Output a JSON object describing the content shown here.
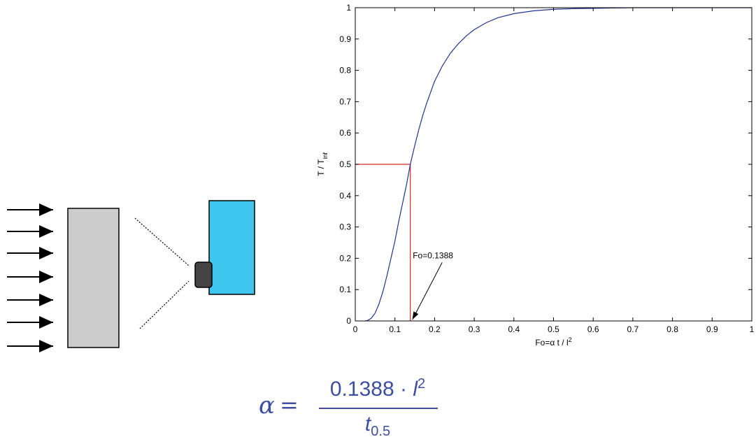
{
  "diagram": {
    "arrow_count": 7,
    "plate_color": "#cccccc",
    "sensor_color": "#3fc6ec",
    "detector_color": "#444444"
  },
  "chart_data": {
    "type": "line",
    "title": "",
    "xlabel": "Fo=α t / l",
    "xlabel_sup": "2",
    "ylabel": "T / T",
    "ylabel_sub": "inf",
    "xlim": [
      0,
      1
    ],
    "ylim": [
      0,
      1
    ],
    "xticks": [
      0,
      0.1,
      0.2,
      0.3,
      0.4,
      0.5,
      0.6,
      0.7,
      0.8,
      0.9,
      1
    ],
    "xtick_labels": [
      "0",
      "0.1",
      "0.2",
      "0.3",
      "0.4",
      "0.5",
      "0.6",
      "0.7",
      "0.8",
      "0.9",
      "1"
    ],
    "yticks": [
      0,
      0.1,
      0.2,
      0.3,
      0.4,
      0.5,
      0.6,
      0.7,
      0.8,
      0.9,
      1
    ],
    "ytick_labels": [
      "0",
      "0.1",
      "0.2",
      "0.3",
      "0.4",
      "0.5",
      "0.6",
      "0.7",
      "0.8",
      "0.9",
      "1"
    ],
    "grid": false,
    "series": [
      {
        "color": "#1f3590",
        "x": [
          0.025,
          0.03,
          0.04,
          0.05,
          0.06,
          0.07,
          0.08,
          0.09,
          0.1,
          0.11,
          0.12,
          0.13,
          0.1388,
          0.15,
          0.16,
          0.17,
          0.18,
          0.2,
          0.22,
          0.24,
          0.26,
          0.28,
          0.3,
          0.33,
          0.36,
          0.4,
          0.45,
          0.5,
          0.55,
          0.6,
          0.65,
          0.7,
          0.8,
          0.9,
          1.0
        ],
        "y": [
          0.0,
          0.001,
          0.008,
          0.025,
          0.055,
          0.095,
          0.145,
          0.2,
          0.255,
          0.32,
          0.38,
          0.44,
          0.5,
          0.56,
          0.61,
          0.655,
          0.695,
          0.765,
          0.815,
          0.855,
          0.885,
          0.91,
          0.93,
          0.952,
          0.968,
          0.981,
          0.99,
          0.995,
          0.997,
          0.998,
          0.999,
          1.0,
          1.0,
          1.0,
          1.0
        ]
      }
    ],
    "marker": {
      "x": 0.1388,
      "y": 0.5,
      "color": "#d62728"
    },
    "annotation": {
      "text": "Fo=0.1388",
      "x": 0.1388,
      "y": 0.0,
      "text_x": 0.145,
      "text_y": 0.2
    }
  },
  "formula": {
    "lhs": "α",
    "eq": "=",
    "num_value": "0.1388",
    "num_dot": "·",
    "num_var": "l",
    "num_exp": "2",
    "den_var": "t",
    "den_sub": "0.5"
  }
}
